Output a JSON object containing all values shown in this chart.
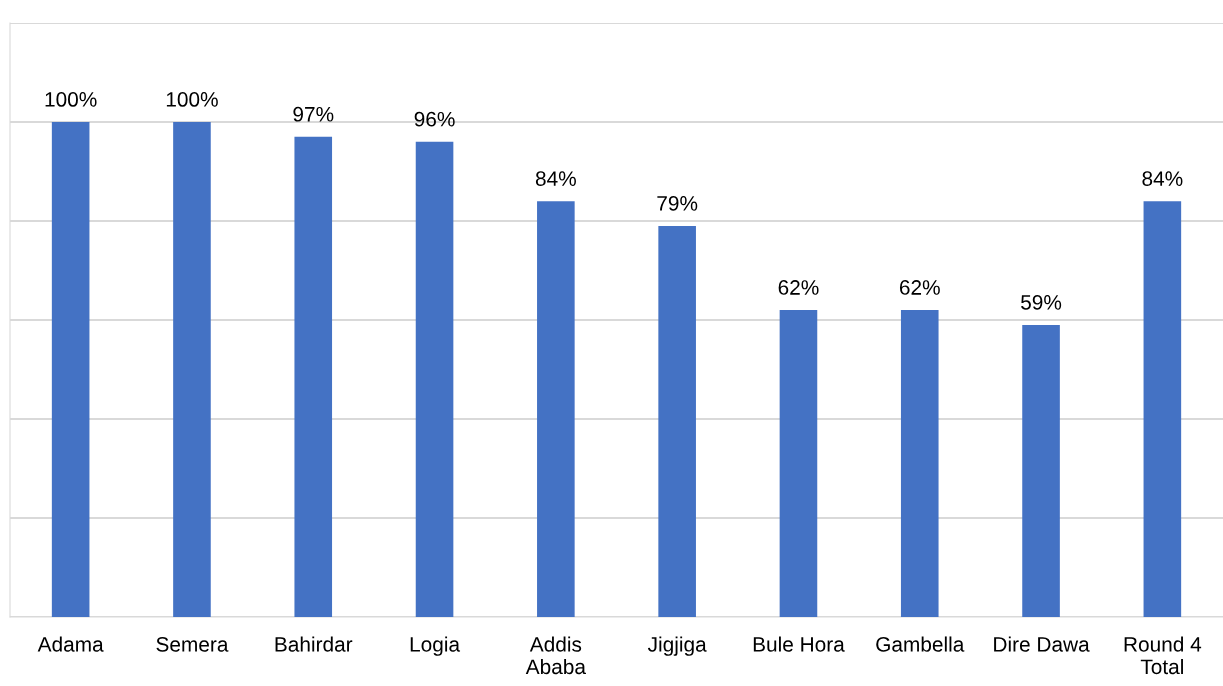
{
  "chart_data": {
    "type": "bar",
    "categories": [
      "Adama",
      "Semera",
      "Bahirdar",
      "Logia",
      "Addis\nAbaba",
      "Jigjiga",
      "Bule Hora",
      "Gambella",
      "Dire Dawa",
      "Round 4\nTotal"
    ],
    "values": [
      100,
      100,
      97,
      96,
      84,
      79,
      62,
      62,
      59,
      84
    ],
    "value_labels": [
      "100%",
      "100%",
      "97%",
      "96%",
      "84%",
      "79%",
      "62%",
      "62%",
      "59%",
      "84%"
    ],
    "color": "#4472c4",
    "ylim": [
      0,
      120
    ],
    "yticks": [
      {
        "value": 0,
        "label": null
      },
      {
        "value": 20,
        "label": null
      },
      {
        "value": 40,
        "label": null
      },
      {
        "value": 60,
        "label": null
      },
      {
        "value": 80,
        "label": null
      },
      {
        "value": 100,
        "label": null
      },
      {
        "value": 120,
        "label": null
      }
    ],
    "tick_labels": "x",
    "grid": "y",
    "legend": false
  }
}
